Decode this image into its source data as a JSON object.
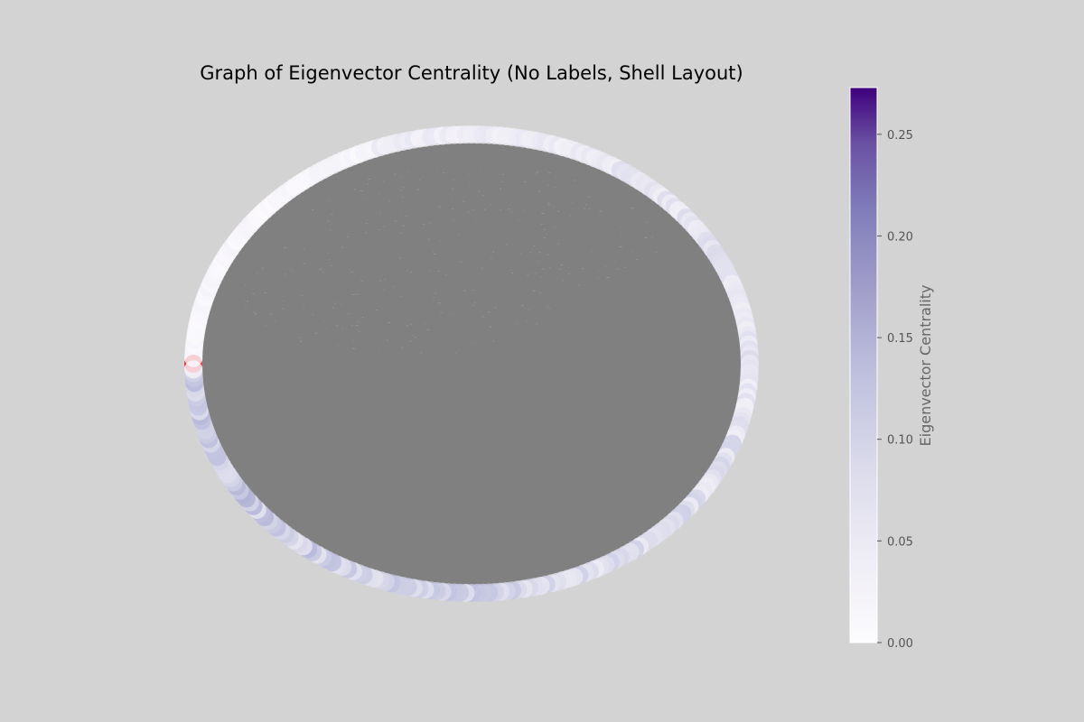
{
  "chart_data": {
    "type": "network",
    "title": "Graph of Eigenvector Centrality (No Labels, Shell Layout)",
    "layout": "shell",
    "node_labels": false,
    "colormap": "Purples",
    "node_count_estimate": 300,
    "highlighted_node_color": "#e8333b",
    "edge_color": "#808080",
    "background_color": "#d3d3d3",
    "colorbar": {
      "label": "Eigenvector Centrality",
      "range": [
        0,
        0.273
      ],
      "ticks": [
        "0.00",
        "0.05",
        "0.10",
        "0.15",
        "0.20",
        "0.25"
      ],
      "tick_values": [
        0.0,
        0.05,
        0.1,
        0.15,
        0.2,
        0.25
      ],
      "color_low": "#fcfbfd",
      "color_high": "#3f007d"
    },
    "centrality_bands": [
      {
        "arc": "upper-left",
        "level": 0.01
      },
      {
        "arc": "top",
        "level": 0.03
      },
      {
        "arc": "upper-right",
        "level": 0.06
      },
      {
        "arc": "right",
        "level": 0.05
      },
      {
        "arc": "lower-right",
        "level": 0.07
      },
      {
        "arc": "bottom",
        "level": 0.09
      },
      {
        "arc": "lower-left",
        "level": 0.11
      }
    ]
  }
}
